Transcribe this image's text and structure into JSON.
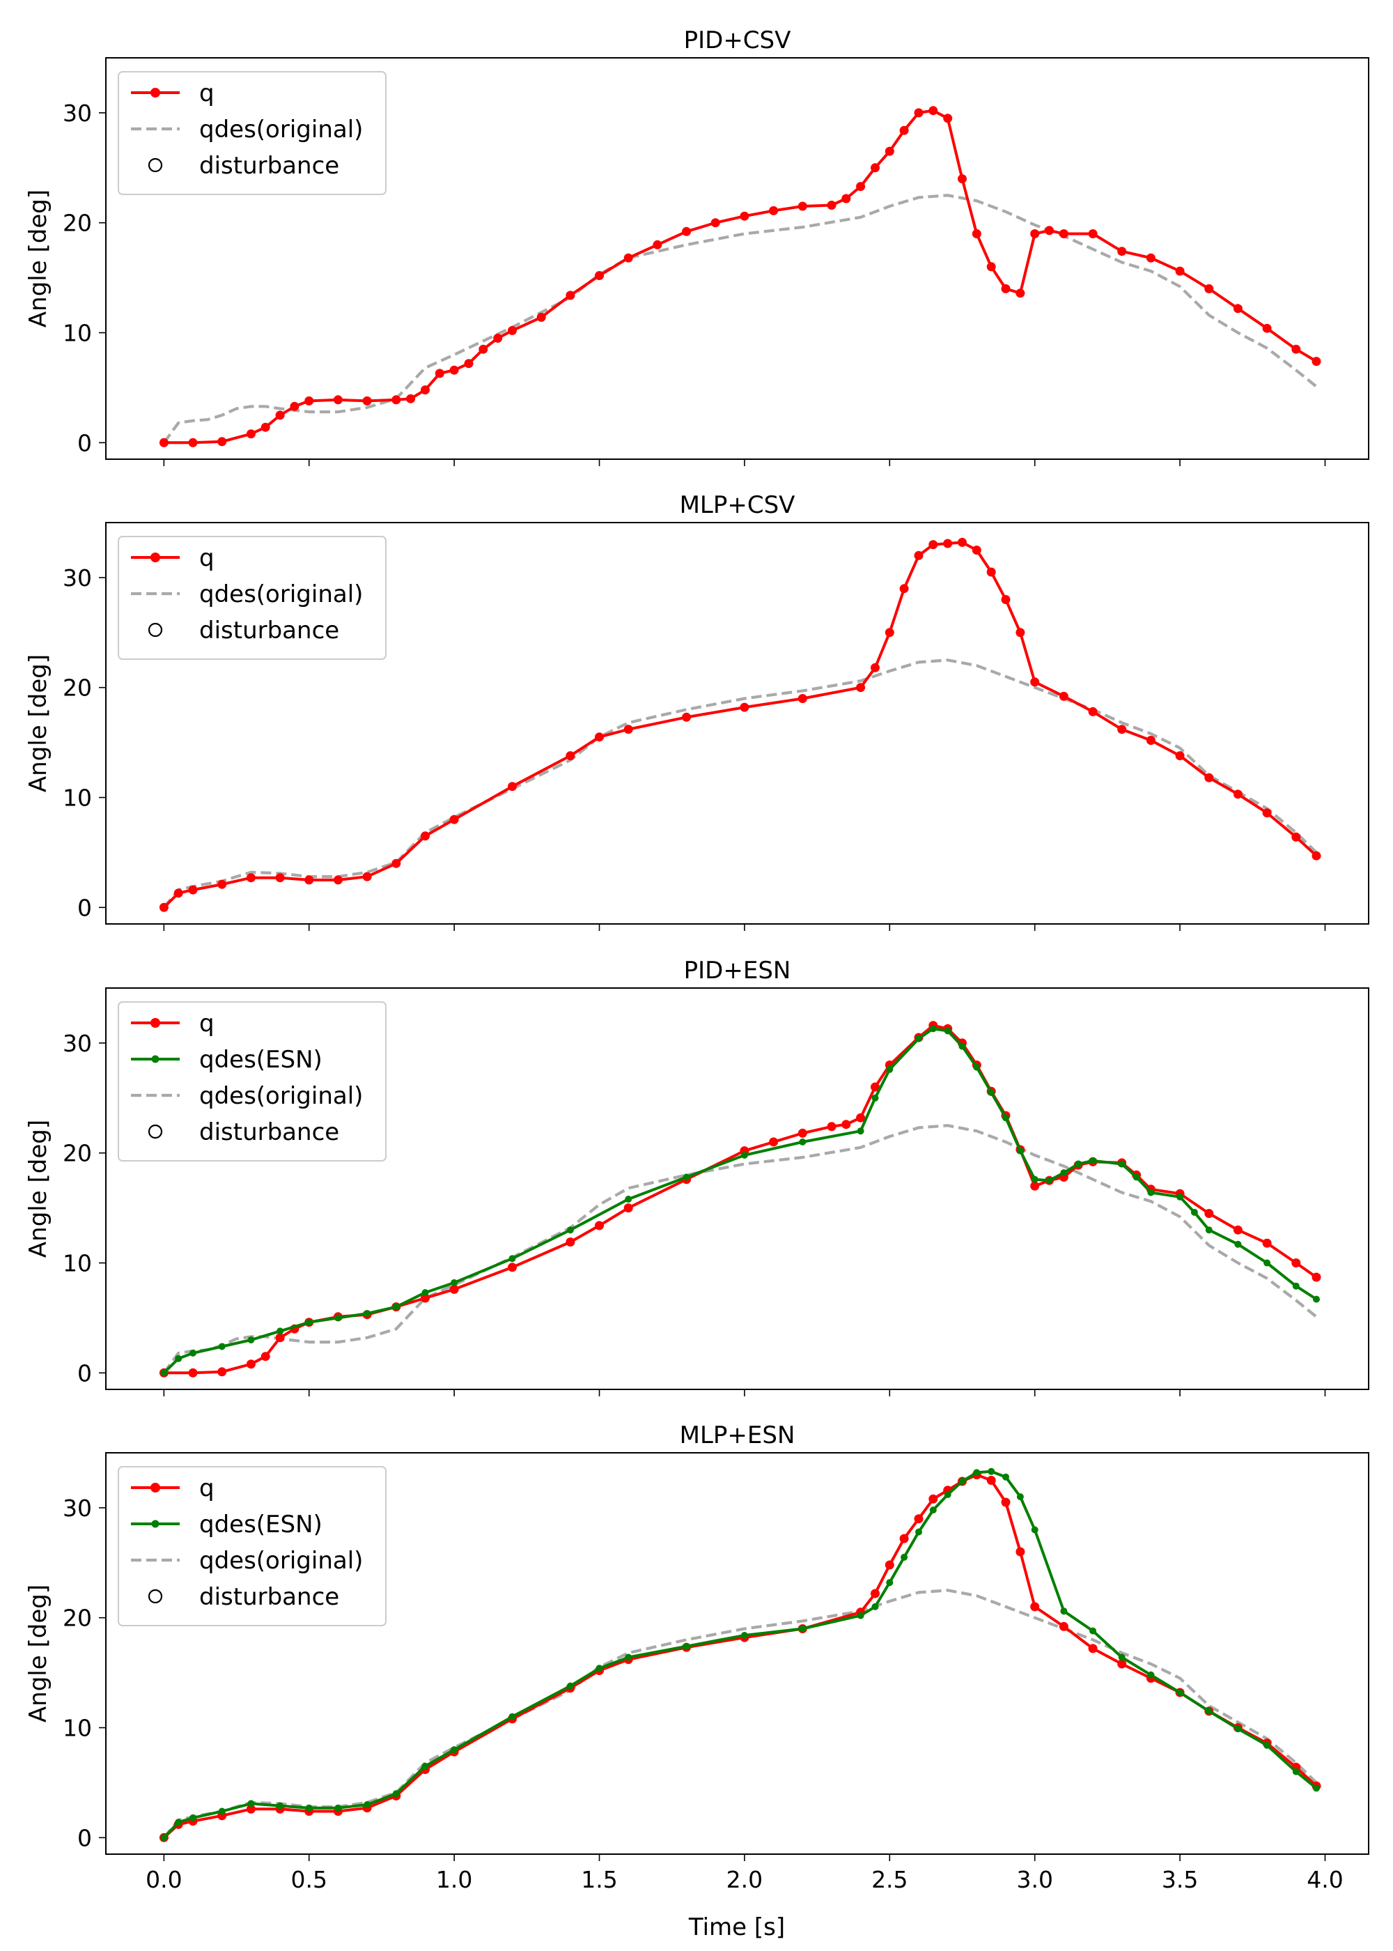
{
  "figure": {
    "xlabel": "Time [s]"
  },
  "chart_data": [
    {
      "type": "line",
      "title": "PID+CSV",
      "xlabel": "",
      "ylabel": "Angle [deg]",
      "xlim": [
        -0.2,
        4.15
      ],
      "ylim": [
        -1.5,
        35
      ],
      "xticks": [
        0.0,
        0.5,
        1.0,
        1.5,
        2.0,
        2.5,
        3.0,
        3.5,
        4.0
      ],
      "xtick_labels": [],
      "yticks": [
        0,
        10,
        20,
        30
      ],
      "grid": false,
      "legend": {
        "placement": "top-left",
        "entries": [
          "q",
          "qdes(original)",
          "disturbance"
        ]
      },
      "series": [
        {
          "name": "q",
          "color": "#ff0000",
          "style": "solid-marker",
          "x": [
            0,
            0.1,
            0.2,
            0.3,
            0.35,
            0.4,
            0.45,
            0.5,
            0.6,
            0.7,
            0.8,
            0.85,
            0.9,
            0.95,
            1.0,
            1.05,
            1.1,
            1.15,
            1.2,
            1.3,
            1.4,
            1.5,
            1.6,
            1.7,
            1.8,
            1.9,
            2.0,
            2.1,
            2.2,
            2.3,
            2.35,
            2.4,
            2.45,
            2.5,
            2.55,
            2.6,
            2.65,
            2.7,
            2.75,
            2.8,
            2.85,
            2.9,
            2.95,
            3.0,
            3.05,
            3.1,
            3.2,
            3.3,
            3.4,
            3.5,
            3.6,
            3.7,
            3.8,
            3.9,
            3.97
          ],
          "y": [
            0,
            0,
            0.1,
            0.8,
            1.4,
            2.5,
            3.3,
            3.8,
            3.9,
            3.8,
            3.9,
            4.0,
            4.8,
            6.3,
            6.6,
            7.2,
            8.5,
            9.5,
            10.2,
            11.4,
            13.4,
            15.2,
            16.8,
            18.0,
            19.2,
            20.0,
            20.6,
            21.1,
            21.5,
            21.6,
            22.2,
            23.3,
            25.0,
            26.5,
            28.4,
            30.0,
            30.2,
            29.5,
            24.0,
            19.0,
            16.0,
            14.0,
            13.6,
            19.0,
            19.3,
            19.0,
            19.0,
            17.4,
            16.8,
            15.6,
            14.0,
            12.2,
            10.4,
            8.5,
            7.4
          ]
        },
        {
          "name": "qdes(original)",
          "color": "#a9a9a9",
          "style": "dashed",
          "x": [
            0,
            0.05,
            0.1,
            0.15,
            0.2,
            0.25,
            0.3,
            0.35,
            0.4,
            0.5,
            0.6,
            0.7,
            0.8,
            0.9,
            1.0,
            1.2,
            1.4,
            1.5,
            1.6,
            1.8,
            2.0,
            2.2,
            2.4,
            2.5,
            2.6,
            2.7,
            2.8,
            2.9,
            3.0,
            3.1,
            3.2,
            3.3,
            3.4,
            3.5,
            3.6,
            3.7,
            3.8,
            3.9,
            3.97
          ],
          "y": [
            0,
            1.8,
            2.0,
            2.1,
            2.5,
            3.1,
            3.3,
            3.3,
            3.1,
            2.8,
            2.8,
            3.2,
            4.0,
            6.8,
            8.0,
            10.5,
            13.2,
            15.3,
            16.8,
            18.0,
            19.0,
            19.6,
            20.5,
            21.5,
            22.3,
            22.5,
            22.0,
            21.0,
            19.8,
            18.8,
            17.6,
            16.4,
            15.6,
            14.2,
            11.6,
            10.0,
            8.6,
            6.6,
            5.1
          ]
        }
      ]
    },
    {
      "type": "line",
      "title": "MLP+CSV",
      "xlabel": "",
      "ylabel": "Angle [deg]",
      "xlim": [
        -0.2,
        4.15
      ],
      "ylim": [
        -1.5,
        35
      ],
      "xticks": [
        0.0,
        0.5,
        1.0,
        1.5,
        2.0,
        2.5,
        3.0,
        3.5,
        4.0
      ],
      "xtick_labels": [],
      "yticks": [
        0,
        10,
        20,
        30
      ],
      "grid": false,
      "legend": {
        "placement": "top-left",
        "entries": [
          "q",
          "qdes(original)",
          "disturbance"
        ]
      },
      "series": [
        {
          "name": "q",
          "color": "#ff0000",
          "style": "solid-marker",
          "x": [
            0,
            0.05,
            0.1,
            0.2,
            0.3,
            0.4,
            0.5,
            0.6,
            0.7,
            0.8,
            0.9,
            1.0,
            1.2,
            1.4,
            1.5,
            1.6,
            1.8,
            2.0,
            2.2,
            2.4,
            2.45,
            2.5,
            2.55,
            2.6,
            2.65,
            2.7,
            2.75,
            2.8,
            2.85,
            2.9,
            2.95,
            3.0,
            3.1,
            3.2,
            3.3,
            3.4,
            3.5,
            3.6,
            3.7,
            3.8,
            3.9,
            3.97
          ],
          "y": [
            0,
            1.3,
            1.6,
            2.1,
            2.7,
            2.7,
            2.5,
            2.5,
            2.8,
            4.0,
            6.5,
            8.0,
            11.0,
            13.8,
            15.5,
            16.2,
            17.3,
            18.2,
            19.0,
            20.0,
            21.8,
            25.0,
            29.0,
            32.0,
            33.0,
            33.1,
            33.2,
            32.5,
            30.5,
            28.0,
            25.0,
            20.5,
            19.2,
            17.8,
            16.2,
            15.2,
            13.8,
            11.8,
            10.3,
            8.6,
            6.4,
            4.7
          ]
        },
        {
          "name": "qdes(original)",
          "color": "#a9a9a9",
          "style": "dashed",
          "x": [
            0,
            0.05,
            0.1,
            0.2,
            0.3,
            0.4,
            0.5,
            0.6,
            0.7,
            0.8,
            0.9,
            1.0,
            1.2,
            1.4,
            1.5,
            1.6,
            1.8,
            2.0,
            2.2,
            2.4,
            2.5,
            2.6,
            2.7,
            2.8,
            2.9,
            3.0,
            3.1,
            3.2,
            3.3,
            3.4,
            3.5,
            3.6,
            3.7,
            3.8,
            3.9,
            3.97
          ],
          "y": [
            0,
            1.6,
            1.9,
            2.4,
            3.2,
            3.1,
            2.8,
            2.8,
            3.2,
            4.1,
            6.8,
            8.2,
            10.8,
            13.4,
            15.5,
            16.8,
            18.0,
            19.0,
            19.7,
            20.6,
            21.5,
            22.3,
            22.5,
            22.0,
            21.0,
            20.0,
            19.0,
            18.0,
            16.8,
            15.8,
            14.5,
            12.0,
            10.5,
            9.0,
            6.8,
            5.0
          ]
        }
      ]
    },
    {
      "type": "line",
      "title": "PID+ESN",
      "xlabel": "",
      "ylabel": "Angle [deg]",
      "xlim": [
        -0.2,
        4.15
      ],
      "ylim": [
        -1.5,
        35
      ],
      "xticks": [
        0.0,
        0.5,
        1.0,
        1.5,
        2.0,
        2.5,
        3.0,
        3.5,
        4.0
      ],
      "xtick_labels": [],
      "yticks": [
        0,
        10,
        20,
        30
      ],
      "grid": false,
      "legend": {
        "placement": "top-left",
        "entries": [
          "q",
          "qdes(ESN)",
          "qdes(original)",
          "disturbance"
        ]
      },
      "series": [
        {
          "name": "q",
          "color": "#ff0000",
          "style": "solid-marker",
          "x": [
            0,
            0.1,
            0.2,
            0.3,
            0.35,
            0.4,
            0.45,
            0.5,
            0.6,
            0.7,
            0.8,
            0.9,
            1.0,
            1.2,
            1.4,
            1.5,
            1.6,
            1.8,
            2.0,
            2.1,
            2.2,
            2.3,
            2.35,
            2.4,
            2.45,
            2.5,
            2.6,
            2.65,
            2.7,
            2.75,
            2.8,
            2.85,
            2.9,
            2.95,
            3.0,
            3.05,
            3.1,
            3.15,
            3.2,
            3.3,
            3.35,
            3.4,
            3.5,
            3.6,
            3.7,
            3.8,
            3.9,
            3.97
          ],
          "y": [
            0,
            0,
            0.1,
            0.8,
            1.5,
            3.2,
            4.0,
            4.6,
            5.1,
            5.3,
            6.0,
            6.8,
            7.6,
            9.6,
            11.9,
            13.4,
            15.0,
            17.6,
            20.2,
            21.0,
            21.8,
            22.4,
            22.6,
            23.2,
            26.0,
            28.0,
            30.5,
            31.6,
            31.3,
            30.0,
            28.0,
            25.6,
            23.4,
            20.3,
            17.0,
            17.5,
            17.8,
            18.9,
            19.2,
            19.1,
            18.0,
            16.7,
            16.3,
            14.5,
            13.0,
            11.8,
            10.0,
            8.7
          ]
        },
        {
          "name": "qdes(ESN)",
          "color": "#008000",
          "style": "solid-marker",
          "x": [
            0,
            0.05,
            0.1,
            0.2,
            0.3,
            0.4,
            0.5,
            0.6,
            0.7,
            0.8,
            0.9,
            1.0,
            1.2,
            1.4,
            1.6,
            1.8,
            2.0,
            2.2,
            2.4,
            2.45,
            2.5,
            2.6,
            2.65,
            2.7,
            2.75,
            2.8,
            2.85,
            2.9,
            2.95,
            3.0,
            3.05,
            3.1,
            3.15,
            3.2,
            3.3,
            3.35,
            3.4,
            3.5,
            3.55,
            3.6,
            3.7,
            3.8,
            3.9,
            3.97
          ],
          "y": [
            0,
            1.3,
            1.8,
            2.4,
            3.0,
            3.8,
            4.6,
            5.0,
            5.4,
            6.0,
            7.3,
            8.2,
            10.4,
            13.0,
            15.8,
            17.8,
            19.8,
            21.0,
            22.0,
            25.0,
            27.6,
            30.4,
            31.3,
            31.1,
            29.7,
            27.8,
            25.5,
            23.2,
            20.2,
            17.6,
            17.5,
            18.2,
            19.0,
            19.3,
            19.0,
            17.8,
            16.4,
            16.0,
            14.6,
            13.0,
            11.7,
            10.0,
            7.9,
            6.7
          ]
        },
        {
          "name": "qdes(original)",
          "color": "#a9a9a9",
          "style": "dashed",
          "x": [
            0,
            0.05,
            0.1,
            0.15,
            0.2,
            0.25,
            0.3,
            0.35,
            0.4,
            0.5,
            0.6,
            0.7,
            0.8,
            0.9,
            1.0,
            1.2,
            1.4,
            1.5,
            1.6,
            1.8,
            2.0,
            2.2,
            2.4,
            2.5,
            2.6,
            2.7,
            2.8,
            2.9,
            3.0,
            3.1,
            3.2,
            3.3,
            3.4,
            3.5,
            3.6,
            3.7,
            3.8,
            3.9,
            3.97
          ],
          "y": [
            0,
            1.8,
            2.0,
            2.1,
            2.5,
            3.1,
            3.3,
            3.3,
            3.1,
            2.8,
            2.8,
            3.2,
            4.0,
            6.8,
            8.0,
            10.5,
            13.2,
            15.3,
            16.8,
            18.0,
            19.0,
            19.6,
            20.5,
            21.5,
            22.3,
            22.5,
            22.0,
            21.0,
            19.8,
            18.8,
            17.6,
            16.4,
            15.6,
            14.2,
            11.6,
            10.0,
            8.6,
            6.6,
            5.1
          ]
        }
      ]
    },
    {
      "type": "line",
      "title": "MLP+ESN",
      "xlabel": "Time [s]",
      "ylabel": "Angle [deg]",
      "xlim": [
        -0.2,
        4.15
      ],
      "ylim": [
        -1.5,
        35
      ],
      "xticks": [
        0.0,
        0.5,
        1.0,
        1.5,
        2.0,
        2.5,
        3.0,
        3.5,
        4.0
      ],
      "xtick_labels": [
        "0.0",
        "0.5",
        "1.0",
        "1.5",
        "2.0",
        "2.5",
        "3.0",
        "3.5",
        "4.0"
      ],
      "yticks": [
        0,
        10,
        20,
        30
      ],
      "grid": false,
      "legend": {
        "placement": "top-left",
        "entries": [
          "q",
          "qdes(ESN)",
          "qdes(original)",
          "disturbance"
        ]
      },
      "series": [
        {
          "name": "q",
          "color": "#ff0000",
          "style": "solid-marker",
          "x": [
            0,
            0.05,
            0.1,
            0.2,
            0.3,
            0.4,
            0.5,
            0.6,
            0.7,
            0.8,
            0.9,
            1.0,
            1.2,
            1.4,
            1.5,
            1.6,
            1.8,
            2.0,
            2.2,
            2.4,
            2.45,
            2.5,
            2.55,
            2.6,
            2.65,
            2.7,
            2.75,
            2.8,
            2.85,
            2.9,
            2.95,
            3.0,
            3.1,
            3.2,
            3.3,
            3.4,
            3.5,
            3.6,
            3.7,
            3.8,
            3.9,
            3.97
          ],
          "y": [
            0,
            1.2,
            1.5,
            2.0,
            2.6,
            2.6,
            2.4,
            2.4,
            2.7,
            3.8,
            6.2,
            7.8,
            10.8,
            13.6,
            15.2,
            16.2,
            17.3,
            18.2,
            19.0,
            20.5,
            22.2,
            24.8,
            27.2,
            29.0,
            30.8,
            31.6,
            32.4,
            33.0,
            32.5,
            30.5,
            26.0,
            21.0,
            19.2,
            17.2,
            15.8,
            14.5,
            13.2,
            11.5,
            10.0,
            8.6,
            6.4,
            4.7
          ]
        },
        {
          "name": "qdes(ESN)",
          "color": "#008000",
          "style": "solid-marker",
          "x": [
            0,
            0.05,
            0.1,
            0.2,
            0.3,
            0.4,
            0.5,
            0.6,
            0.7,
            0.8,
            0.9,
            1.0,
            1.2,
            1.4,
            1.5,
            1.6,
            1.8,
            2.0,
            2.2,
            2.4,
            2.45,
            2.5,
            2.55,
            2.6,
            2.65,
            2.7,
            2.75,
            2.8,
            2.85,
            2.9,
            2.95,
            3.0,
            3.1,
            3.2,
            3.3,
            3.4,
            3.5,
            3.6,
            3.7,
            3.8,
            3.9,
            3.97
          ],
          "y": [
            0,
            1.4,
            1.8,
            2.4,
            3.1,
            2.9,
            2.7,
            2.7,
            3.0,
            4.0,
            6.5,
            8.0,
            11.0,
            13.8,
            15.4,
            16.4,
            17.4,
            18.4,
            19.0,
            20.2,
            21.0,
            23.2,
            25.5,
            27.8,
            29.8,
            31.2,
            32.4,
            33.2,
            33.3,
            32.8,
            31.0,
            28.0,
            20.6,
            18.8,
            16.4,
            14.8,
            13.2,
            11.5,
            9.9,
            8.4,
            6.0,
            4.5
          ]
        },
        {
          "name": "qdes(original)",
          "color": "#a9a9a9",
          "style": "dashed",
          "x": [
            0,
            0.05,
            0.1,
            0.2,
            0.3,
            0.4,
            0.5,
            0.6,
            0.7,
            0.8,
            0.9,
            1.0,
            1.2,
            1.4,
            1.5,
            1.6,
            1.8,
            2.0,
            2.2,
            2.4,
            2.5,
            2.6,
            2.7,
            2.8,
            2.9,
            3.0,
            3.1,
            3.2,
            3.3,
            3.4,
            3.5,
            3.6,
            3.7,
            3.8,
            3.9,
            3.97
          ],
          "y": [
            0,
            1.6,
            1.9,
            2.4,
            3.2,
            3.1,
            2.8,
            2.8,
            3.2,
            4.1,
            6.8,
            8.2,
            10.8,
            13.4,
            15.5,
            16.8,
            18.0,
            19.0,
            19.7,
            20.6,
            21.5,
            22.3,
            22.5,
            22.0,
            21.0,
            20.0,
            19.0,
            18.0,
            16.8,
            15.8,
            14.5,
            12.0,
            10.5,
            9.0,
            6.8,
            5.0
          ]
        }
      ]
    }
  ]
}
